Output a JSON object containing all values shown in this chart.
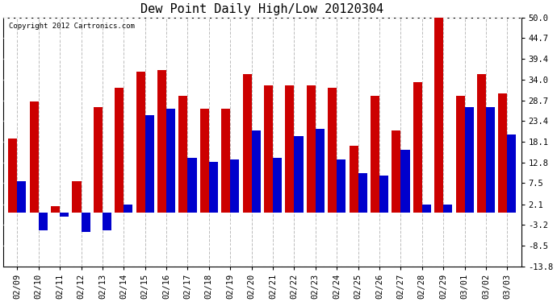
{
  "title": "Dew Point Daily High/Low 20120304",
  "copyright": "Copyright 2012 Cartronics.com",
  "dates": [
    "02/09",
    "02/10",
    "02/11",
    "02/12",
    "02/13",
    "02/14",
    "02/15",
    "02/16",
    "02/17",
    "02/18",
    "02/19",
    "02/20",
    "02/21",
    "02/22",
    "02/23",
    "02/24",
    "02/25",
    "02/26",
    "02/27",
    "02/28",
    "02/29",
    "03/01",
    "03/02",
    "03/03"
  ],
  "highs": [
    19.0,
    28.5,
    1.5,
    8.0,
    27.0,
    32.0,
    36.0,
    36.5,
    30.0,
    26.5,
    26.5,
    35.5,
    32.5,
    32.5,
    32.5,
    32.0,
    17.0,
    30.0,
    21.0,
    33.5,
    50.0,
    30.0,
    35.5,
    30.5
  ],
  "lows": [
    8.0,
    -4.5,
    -1.0,
    -5.0,
    -4.5,
    2.0,
    25.0,
    26.5,
    14.0,
    13.0,
    13.5,
    21.0,
    14.0,
    19.5,
    21.5,
    13.5,
    10.0,
    9.5,
    16.0,
    2.0,
    2.0,
    27.0,
    27.0,
    20.0
  ],
  "high_color": "#cc0000",
  "low_color": "#0000cc",
  "ylim": [
    -13.8,
    50.0
  ],
  "yticks": [
    50.0,
    44.7,
    39.4,
    34.0,
    28.7,
    23.4,
    18.1,
    12.8,
    7.5,
    2.1,
    -3.2,
    -8.5,
    -13.8
  ],
  "background_color": "#ffffff",
  "title_fontsize": 11,
  "tick_fontsize": 7.5,
  "bar_width": 0.42,
  "figwidth": 6.9,
  "figheight": 3.75
}
